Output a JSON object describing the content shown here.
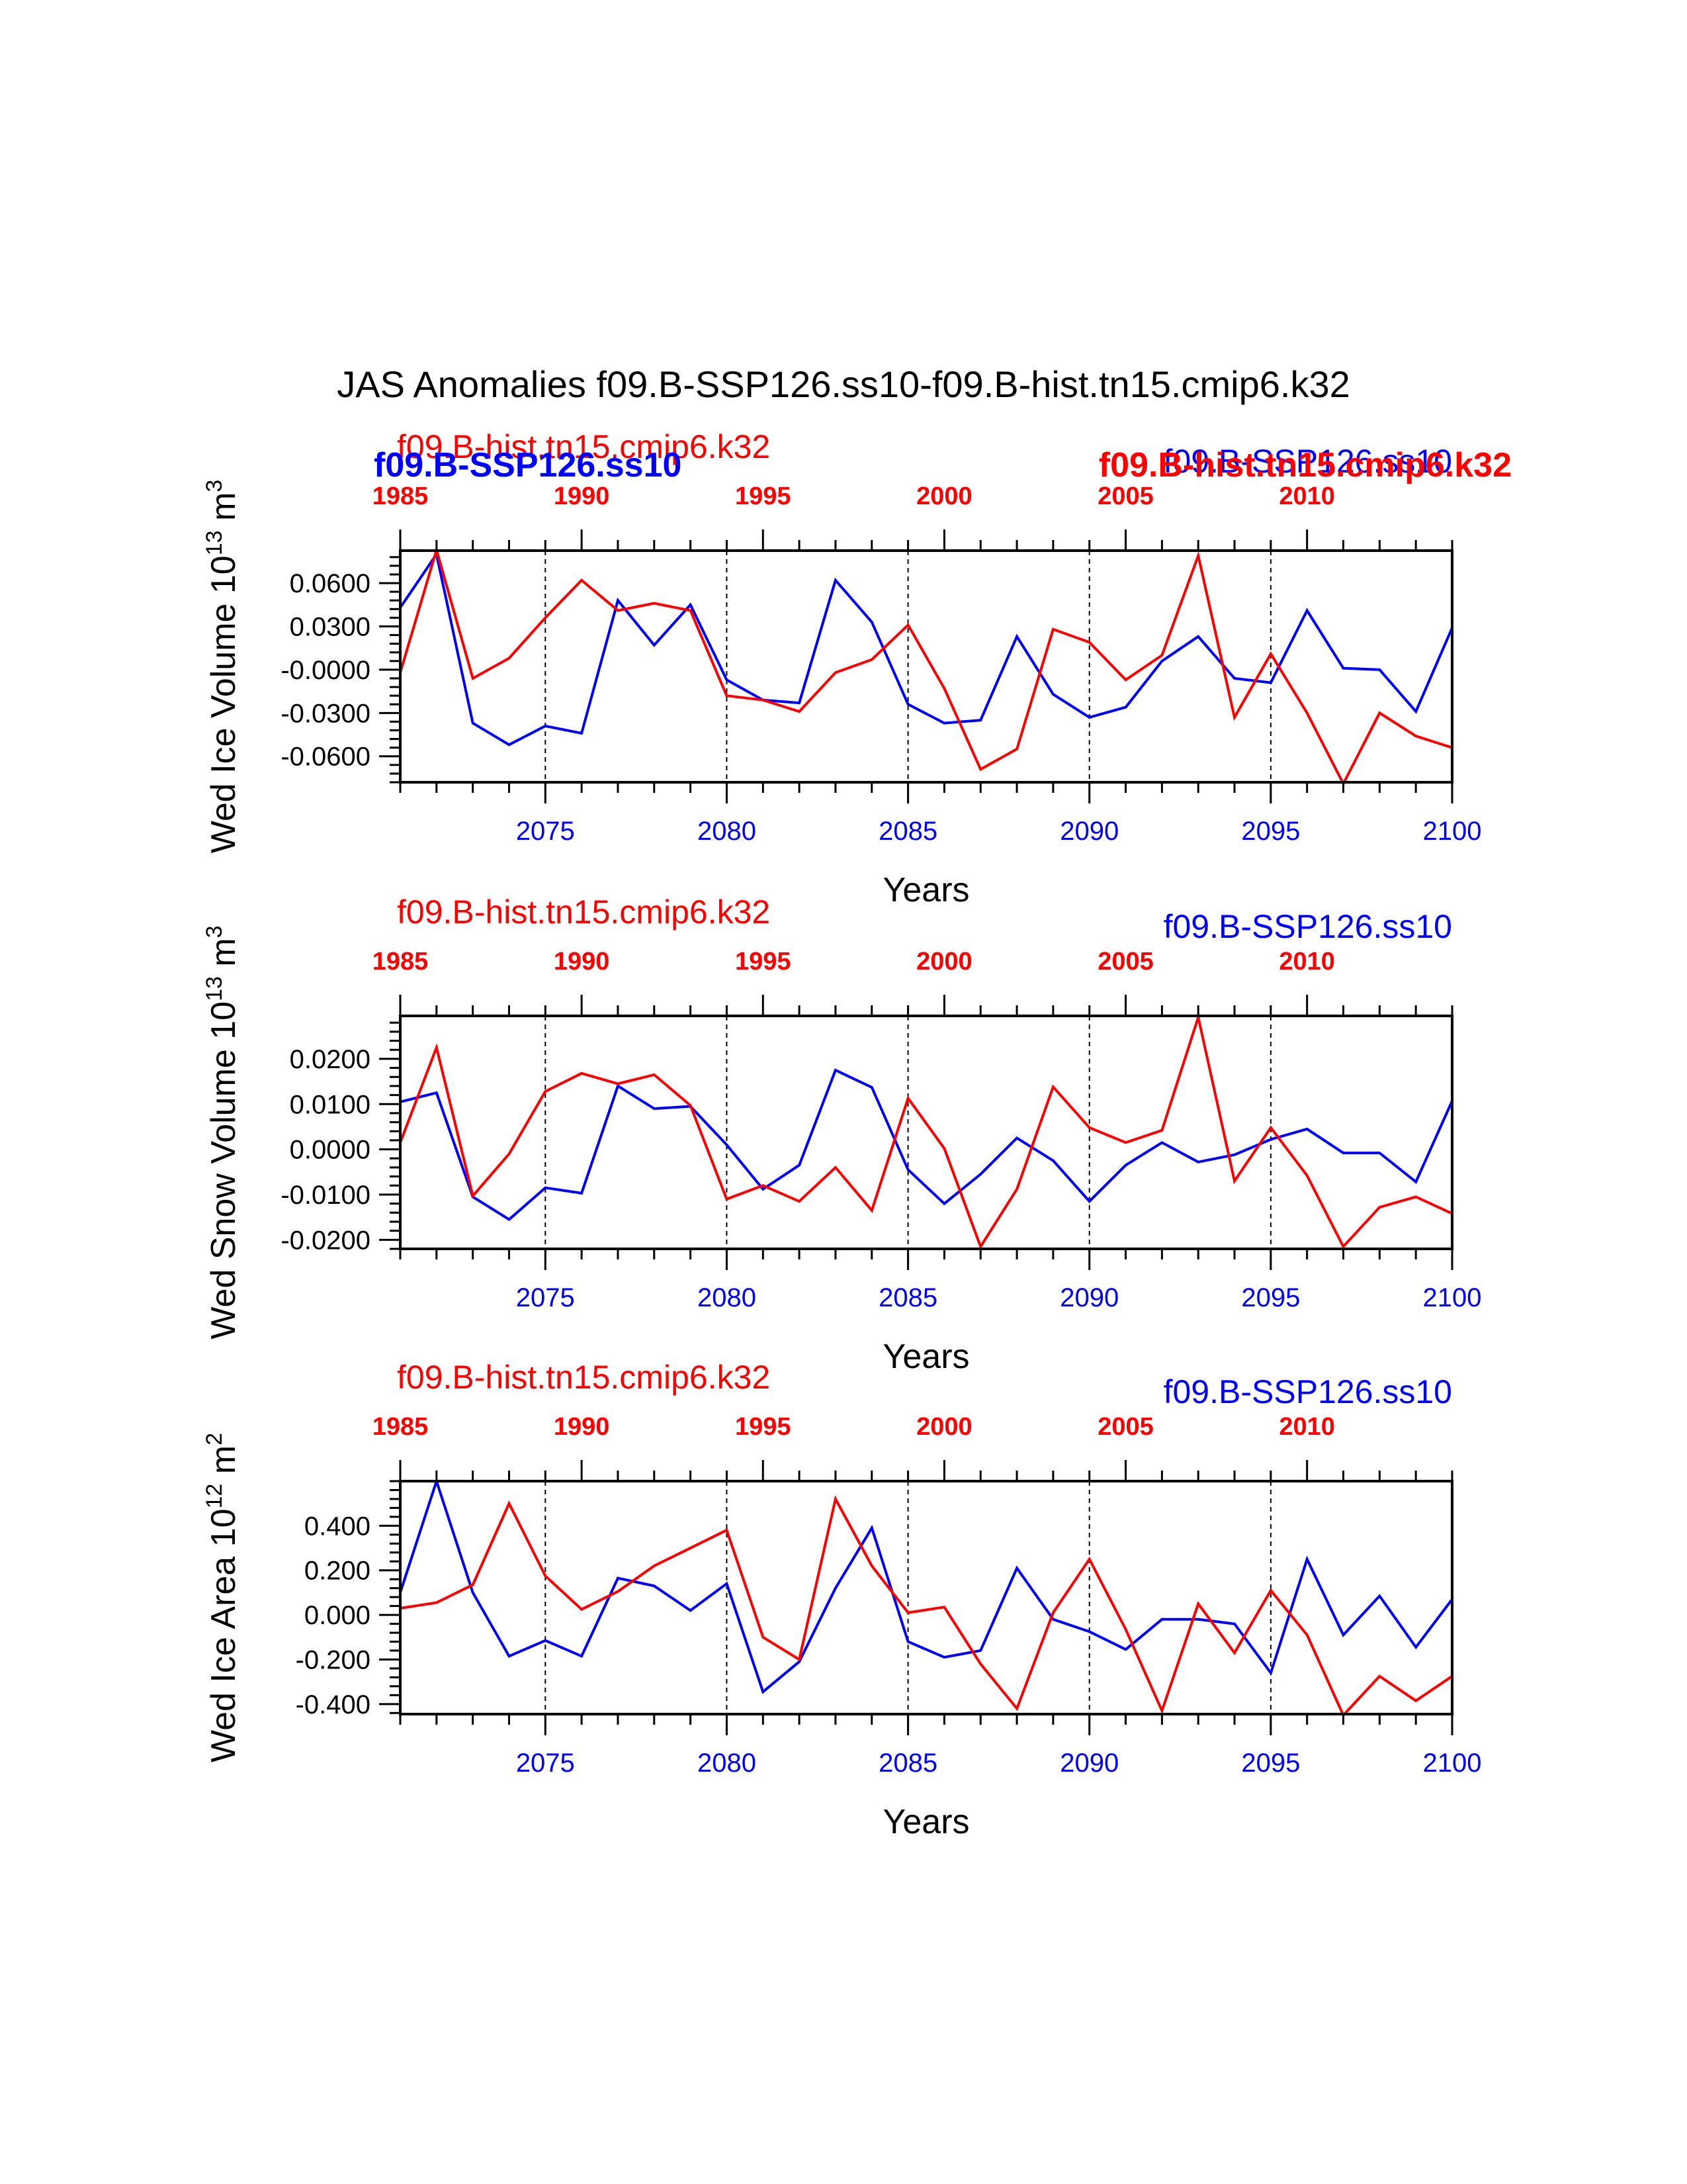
{
  "title": "JAS Anomalies f09.B-SSP126.ss10-f09.B-hist.tn15.cmip6.k32",
  "colors": {
    "ssp": "#0000FF",
    "hist": "#FF0000",
    "axis": "#000000"
  },
  "chart_data": [
    {
      "type": "line",
      "ylabel": "Wed Ice Volume 10",
      "ylabel_exp": "13",
      "ylabel_unit": " m",
      "ylabel_unit_exp": "3",
      "xlabel": "Years",
      "xlim": [
        2071,
        2100
      ],
      "ylim": [
        -0.078,
        0.0825
      ],
      "yticks": [
        0.06,
        0.03,
        0.0,
        -0.03,
        -0.06
      ],
      "ytick_labels": [
        "0.0600",
        "0.0300",
        "-0.0000",
        "-0.0300",
        "-0.0600"
      ],
      "bottom_axis": {
        "ticks": [
          2075,
          2080,
          2085,
          2090,
          2095,
          2100
        ],
        "labels": [
          "2075",
          "2080",
          "2085",
          "2090",
          "2095",
          "2100"
        ]
      },
      "top_axis": {
        "ticks": [
          1985,
          1990,
          1995,
          2000,
          2005,
          2010
        ],
        "labels": [
          "1985",
          "1990",
          "1995",
          "2000",
          "2005",
          "2010"
        ]
      },
      "legend_hist": "f09.B-hist.tn15.cmip6.k32",
      "legend_ssp": "f09.B-SSP126.ss10",
      "legend_ssp_bold": "f09.B-SSP126.ss10",
      "legend_hist_bold": "f09.B-hist.tn15.cmip6.k32",
      "series": [
        {
          "name": "f09.B-SSP126.ss10",
          "color": "#0000FF",
          "x_start": 2071,
          "values": [
            0.043,
            0.08,
            -0.037,
            -0.052,
            -0.039,
            -0.044,
            0.048,
            0.017,
            0.045,
            -0.007,
            -0.021,
            -0.023,
            0.062,
            0.033,
            -0.024,
            -0.037,
            -0.035,
            0.023,
            -0.017,
            -0.033,
            -0.026,
            0.006,
            0.023,
            -0.006,
            -0.009,
            0.041,
            0.001,
            0.0,
            -0.029,
            0.029
          ]
        },
        {
          "name": "f09.B-hist.tn15.cmip6.k32",
          "color": "#FF0000",
          "x_start": 1985,
          "values": [
            -0.002,
            0.083,
            -0.006,
            0.008,
            0.036,
            0.062,
            0.041,
            0.046,
            0.041,
            -0.018,
            -0.021,
            -0.029,
            -0.002,
            0.007,
            0.031,
            -0.013,
            -0.069,
            -0.055,
            0.028,
            0.019,
            -0.007,
            0.01,
            0.079,
            -0.033,
            0.011,
            -0.03,
            -0.079,
            -0.03,
            -0.046,
            -0.054
          ]
        }
      ]
    },
    {
      "type": "line",
      "ylabel": "Wed Snow Volume 10",
      "ylabel_exp": "13",
      "ylabel_unit": " m",
      "ylabel_unit_exp": "3",
      "xlabel": "Years",
      "xlim": [
        2071,
        2100
      ],
      "ylim": [
        -0.022,
        0.0295
      ],
      "yticks": [
        0.02,
        0.01,
        0.0,
        -0.01,
        -0.02
      ],
      "ytick_labels": [
        "0.0200",
        "0.0100",
        "0.0000",
        "-0.0100",
        "-0.0200"
      ],
      "bottom_axis": {
        "ticks": [
          2075,
          2080,
          2085,
          2090,
          2095,
          2100
        ],
        "labels": [
          "2075",
          "2080",
          "2085",
          "2090",
          "2095",
          "2100"
        ]
      },
      "top_axis": {
        "ticks": [
          1985,
          1990,
          1995,
          2000,
          2005,
          2010
        ],
        "labels": [
          "1985",
          "1990",
          "1995",
          "2000",
          "2005",
          "2010"
        ]
      },
      "legend_hist": "f09.B-hist.tn15.cmip6.k32",
      "legend_ssp": "f09.B-SSP126.ss10",
      "series": [
        {
          "name": "f09.B-SSP126.ss10",
          "color": "#0000FF",
          "x_start": 2071,
          "values": [
            0.0105,
            0.0125,
            -0.0105,
            -0.0155,
            -0.0085,
            -0.0097,
            0.014,
            0.009,
            0.0095,
            0.001,
            -0.0088,
            -0.0035,
            0.0175,
            0.0137,
            -0.0045,
            -0.012,
            -0.0055,
            0.0025,
            -0.0025,
            -0.0115,
            -0.0035,
            0.0015,
            -0.0028,
            -0.0012,
            0.0022,
            0.0045,
            -0.0008,
            -0.0008,
            -0.0072,
            0.0107
          ]
        },
        {
          "name": "f09.B-hist.tn15.cmip6.k32",
          "color": "#FF0000",
          "x_start": 1985,
          "values": [
            0.0015,
            0.0225,
            -0.0103,
            -0.001,
            0.0128,
            0.0168,
            0.0145,
            0.0165,
            0.0097,
            -0.011,
            -0.008,
            -0.0115,
            -0.004,
            -0.0135,
            0.0113,
            0.0002,
            -0.0215,
            -0.0088,
            0.0138,
            0.0048,
            0.0015,
            0.0042,
            0.0292,
            -0.007,
            0.0048,
            -0.0058,
            -0.0215,
            -0.0128,
            -0.0105,
            -0.0142
          ]
        }
      ]
    },
    {
      "type": "line",
      "ylabel": "Wed Ice Area 10",
      "ylabel_exp": "12",
      "ylabel_unit": " m",
      "ylabel_unit_exp": "2",
      "xlabel": "Years",
      "xlim": [
        2071,
        2100
      ],
      "ylim": [
        -0.445,
        0.6
      ],
      "yticks": [
        0.4,
        0.2,
        0.0,
        -0.2,
        -0.4
      ],
      "ytick_labels": [
        "0.400",
        "0.200",
        "0.000",
        "-0.200",
        "-0.400"
      ],
      "bottom_axis": {
        "ticks": [
          2075,
          2080,
          2085,
          2090,
          2095,
          2100
        ],
        "labels": [
          "2075",
          "2080",
          "2085",
          "2090",
          "2095",
          "2100"
        ]
      },
      "top_axis": {
        "ticks": [
          1985,
          1990,
          1995,
          2000,
          2005,
          2010
        ],
        "labels": [
          "1985",
          "1990",
          "1995",
          "2000",
          "2005",
          "2010"
        ]
      },
      "legend_hist": "f09.B-hist.tn15.cmip6.k32",
      "legend_ssp": "f09.B-SSP126.ss10",
      "series": [
        {
          "name": "f09.B-SSP126.ss10",
          "color": "#0000FF",
          "x_start": 2071,
          "values": [
            0.1,
            0.6,
            0.1,
            -0.185,
            -0.115,
            -0.185,
            0.165,
            0.13,
            0.02,
            0.14,
            -0.345,
            -0.21,
            0.12,
            0.39,
            -0.12,
            -0.19,
            -0.16,
            0.21,
            -0.02,
            -0.075,
            -0.155,
            -0.02,
            -0.02,
            -0.04,
            -0.26,
            0.25,
            -0.09,
            0.085,
            -0.145,
            0.07
          ]
        },
        {
          "name": "f09.B-hist.tn15.cmip6.k32",
          "color": "#FF0000",
          "x_start": 1985,
          "values": [
            0.03,
            0.055,
            0.135,
            0.5,
            0.175,
            0.025,
            0.105,
            0.22,
            0.3,
            0.38,
            -0.1,
            -0.2,
            0.52,
            0.22,
            0.01,
            0.035,
            -0.22,
            -0.42,
            0.01,
            0.25,
            -0.065,
            -0.43,
            0.05,
            -0.17,
            0.11,
            -0.09,
            -0.45,
            -0.275,
            -0.385,
            -0.275
          ]
        }
      ]
    }
  ]
}
